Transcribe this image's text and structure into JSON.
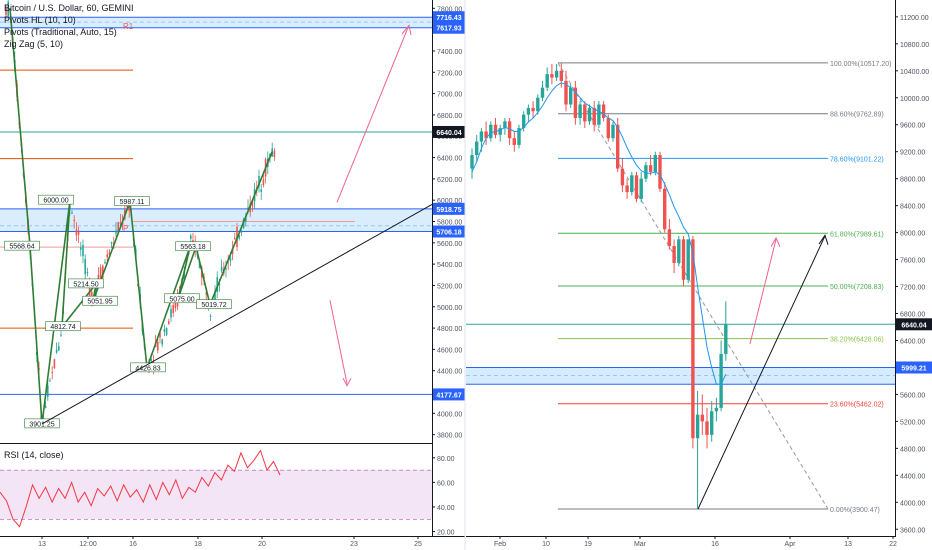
{
  "left_panel": {
    "legend": {
      "title": "Bitcoin / U.S. Dollar, 60, GEMINI",
      "indicators": [
        "Pivots HL (10, 10)",
        "Pivots (Traditional, Auto, 15)",
        "Zig Zag (5, 10)"
      ]
    },
    "rsi_label": "RSI (14, close)",
    "pivot_label": "R1",
    "pivot_p_label": "P"
  },
  "right_panel": {},
  "colors": {
    "bull": "#26a69a",
    "bear": "#ef5350",
    "accent": "#2962ff",
    "rsi_line": "#f23645",
    "rsi_band": "#f3e5f5",
    "zone": "#bbdefb"
  },
  "chart_data": [
    {
      "type": "candlestick",
      "title": "Bitcoin / U.S. Dollar, 60, GEMINI",
      "timeframe": "60",
      "x_ticks": [
        "13",
        "12:00",
        "16",
        "18",
        "20",
        "23",
        "25"
      ],
      "y_ticks": [
        3800,
        4000,
        4200,
        4400,
        4600,
        4800,
        5000,
        5200,
        5400,
        5600,
        5800,
        6000,
        6200,
        6400,
        6600,
        6800,
        7000,
        7200,
        7400,
        7600,
        7800
      ],
      "ylim": [
        3750,
        7850
      ],
      "price_labels": [
        {
          "value": "7716.43",
          "color": "#2962ff"
        },
        {
          "value": "7617.93",
          "color": "#2962ff"
        },
        {
          "value": "6640.04",
          "color": "#131722"
        },
        {
          "value": "5918.75",
          "color": "#2962ff"
        },
        {
          "value": "5706.18",
          "color": "#2962ff"
        },
        {
          "value": "4177.67",
          "color": "#2962ff"
        }
      ],
      "pivot_points": [
        "5568.64",
        "6000.00",
        "5987.11",
        "5563.18",
        "5214.50",
        "5051.95",
        "5075.00",
        "5019.72",
        "4812.74",
        "4426.83",
        "3901.25"
      ],
      "trendline": {
        "from": [
          3901.25,
          "13"
        ],
        "to": [
          5960,
          "25"
        ]
      },
      "series": [
        {
          "name": "Zig Zag",
          "values": [
            7800,
            5568.64,
            3901.25,
            6000,
            4812.74,
            5214.5,
            5051.95,
            5987.11,
            4426.83,
            5563.18,
            5075,
            5563,
            5019.72,
            6450
          ]
        }
      ]
    },
    {
      "type": "line",
      "title": "RSI (14, close)",
      "y_ticks": [
        20,
        40,
        60,
        80
      ],
      "ylim": [
        18,
        88
      ],
      "bands": [
        30,
        70
      ],
      "series": [
        {
          "name": "RSI",
          "values": [
            52,
            45,
            30,
            24,
            40,
            58,
            47,
            56,
            44,
            55,
            47,
            60,
            44,
            52,
            41,
            55,
            49,
            57,
            45,
            58,
            48,
            54,
            44,
            58,
            46,
            60,
            50,
            62,
            47,
            56,
            52,
            64,
            57,
            68,
            62,
            74,
            69,
            84,
            72,
            78,
            86,
            70,
            77,
            66
          ]
        }
      ]
    },
    {
      "type": "candlestick",
      "title": "",
      "timeframe": "daily",
      "x_ticks": [
        "Feb",
        "10",
        "19",
        "Mar",
        "16",
        "Apr",
        "13",
        "22"
      ],
      "y_ticks": [
        3600,
        4000,
        4400,
        4800,
        5200,
        5600,
        6000,
        6400,
        6800,
        7200,
        7600,
        8000,
        8400,
        8800,
        9200,
        9600,
        10000,
        10400,
        10800,
        11200
      ],
      "ylim": [
        3500,
        11450
      ],
      "price_labels": [
        {
          "value": "6640.04",
          "color": "#131722"
        },
        {
          "value": "5999.21",
          "color": "#2962ff"
        }
      ],
      "fibonacci": [
        {
          "level": "100.00%(10517.20)",
          "price": 10517.2
        },
        {
          "level": "88.60%(9762.89)",
          "price": 9762.89
        },
        {
          "level": "78.60%(9101.22)",
          "price": 9101.22
        },
        {
          "level": "61.80%(7989.61)",
          "price": 7989.61
        },
        {
          "level": "50.00%(7208.83)",
          "price": 7208.83
        },
        {
          "level": "38.20%(6428.06)",
          "price": 6428.06
        },
        {
          "level": "23.60%(5462.02)",
          "price": 5462.02
        },
        {
          "level": "0.00%(3900.47)",
          "price": 3900.47
        }
      ],
      "candles": [
        [
          8950,
          9250,
          8800,
          9150
        ],
        [
          9150,
          9450,
          9050,
          9350
        ],
        [
          9350,
          9550,
          9200,
          9500
        ],
        [
          9500,
          9650,
          9300,
          9400
        ],
        [
          9400,
          9650,
          9350,
          9600
        ],
        [
          9600,
          9700,
          9400,
          9450
        ],
        [
          9450,
          9600,
          9350,
          9550
        ],
        [
          9550,
          9700,
          9450,
          9650
        ],
        [
          9650,
          9700,
          9300,
          9400
        ],
        [
          9400,
          9500,
          9200,
          9300
        ],
        [
          9300,
          9600,
          9250,
          9550
        ],
        [
          9550,
          9800,
          9500,
          9750
        ],
        [
          9750,
          9900,
          9650,
          9850
        ],
        [
          9850,
          9950,
          9700,
          9800
        ],
        [
          9800,
          10050,
          9750,
          10000
        ],
        [
          10000,
          10250,
          9950,
          10150
        ],
        [
          10150,
          10450,
          10100,
          10350
        ],
        [
          10350,
          10500,
          10200,
          10300
        ],
        [
          10300,
          10500,
          10250,
          10400
        ],
        [
          10400,
          10520,
          10150,
          10250
        ],
        [
          10250,
          10400,
          9800,
          9900
        ],
        [
          9900,
          10200,
          9850,
          10150
        ],
        [
          10150,
          10250,
          9600,
          9700
        ],
        [
          9700,
          9950,
          9600,
          9900
        ],
        [
          9900,
          9950,
          9550,
          9650
        ],
        [
          9650,
          9900,
          9600,
          9850
        ],
        [
          9850,
          9950,
          9500,
          9600
        ],
        [
          9600,
          9950,
          9550,
          9900
        ],
        [
          9900,
          9950,
          9650,
          9700
        ],
        [
          9700,
          9750,
          9350,
          9400
        ],
        [
          9400,
          9650,
          9350,
          9600
        ],
        [
          9600,
          9700,
          8900,
          8950
        ],
        [
          8950,
          9100,
          8600,
          8700
        ],
        [
          8700,
          8800,
          8500,
          8600
        ],
        [
          8600,
          8900,
          8550,
          8850
        ],
        [
          8850,
          8900,
          8450,
          8500
        ],
        [
          8500,
          8900,
          8450,
          8800
        ],
        [
          8800,
          9050,
          8750,
          9000
        ],
        [
          9000,
          9150,
          8850,
          8900
        ],
        [
          8900,
          9200,
          8850,
          9150
        ],
        [
          9150,
          9200,
          8600,
          8650
        ],
        [
          8650,
          8750,
          8000,
          8050
        ],
        [
          8050,
          8200,
          7750,
          7800
        ],
        [
          7800,
          7900,
          7400,
          7550
        ],
        [
          7550,
          7950,
          7500,
          7900
        ],
        [
          7900,
          7950,
          7200,
          7300
        ],
        [
          7300,
          7900,
          7250,
          7900
        ],
        [
          7900,
          7950,
          4800,
          4950
        ],
        [
          4950,
          5650,
          3900,
          5300
        ],
        [
          5300,
          5600,
          5000,
          5200
        ],
        [
          5200,
          5400,
          4800,
          5000
        ],
        [
          5000,
          5500,
          4900,
          5350
        ],
        [
          5350,
          5550,
          5200,
          5400
        ],
        [
          5400,
          6400,
          5350,
          6200
        ],
        [
          6200,
          6980,
          6100,
          6640
        ]
      ],
      "series": [
        {
          "name": "Moving average",
          "values": [
            8900,
            9050,
            9250,
            9400,
            9480,
            9500,
            9520,
            9560,
            9540,
            9500,
            9500,
            9560,
            9640,
            9700,
            9780,
            9880,
            10000,
            10100,
            10180,
            10220,
            10200,
            10150,
            10080,
            10000,
            9920,
            9880,
            9830,
            9800,
            9760,
            9700,
            9660,
            9560,
            9420,
            9260,
            9120,
            9000,
            8920,
            8880,
            8880,
            8900,
            8860,
            8720,
            8560,
            8380,
            8240,
            8080,
            7980,
            7700,
            7200,
            6750,
            6300,
            6000,
            5750,
            5750,
            5900
          ]
        }
      ],
      "trendline": {
        "from": [
          3900.47,
          "16"
        ],
        "to": [
          8000,
          "Apr"
        ]
      }
    }
  ]
}
